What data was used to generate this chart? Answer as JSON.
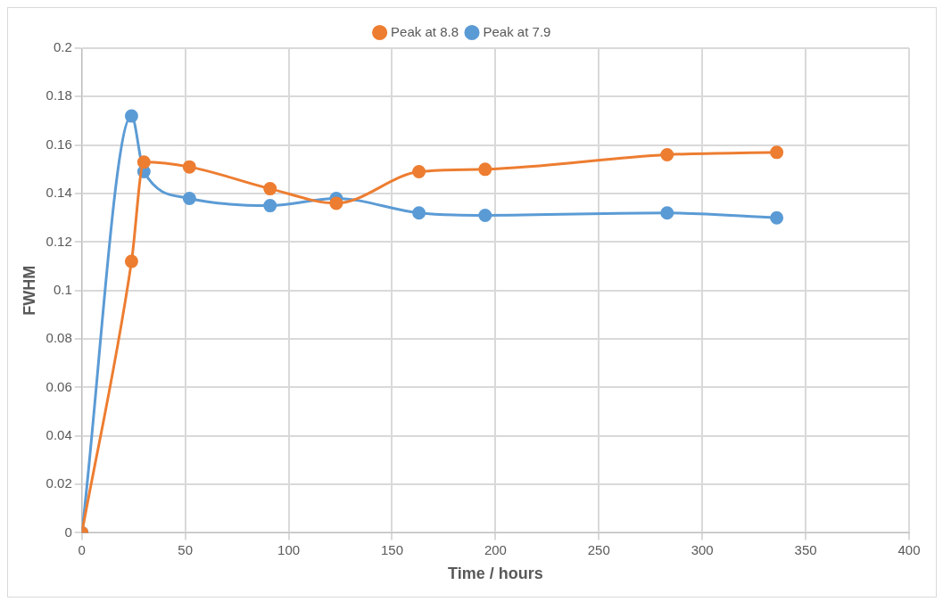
{
  "chart_data": {
    "type": "line",
    "xlabel": "Time / hours",
    "ylabel": "FWHM",
    "xlim": [
      0,
      400
    ],
    "xticks": [
      0,
      50,
      100,
      150,
      200,
      250,
      300,
      350,
      400
    ],
    "ylim": [
      0,
      0.2
    ],
    "yticks": [
      0,
      0.02,
      0.04,
      0.06,
      0.08,
      0.1,
      0.12,
      0.14,
      0.16,
      0.18,
      0.2
    ],
    "grid": true,
    "legend": "top",
    "marker": "circle",
    "line_style": "solid",
    "series": [
      {
        "name": "Peak at 7.9",
        "color": "#5b9bd5",
        "x": [
          0,
          24,
          30,
          52,
          91,
          123,
          163,
          195,
          283,
          336
        ],
        "values": [
          0,
          0.172,
          0.149,
          0.138,
          0.135,
          0.138,
          0.132,
          0.131,
          0.132,
          0.13
        ]
      },
      {
        "name": "Peak at 8.8",
        "color": "#ed7d31",
        "x": [
          0,
          24,
          30,
          52,
          91,
          123,
          163,
          195,
          283,
          336
        ],
        "values": [
          0,
          0.112,
          0.153,
          0.151,
          0.142,
          0.136,
          0.149,
          0.15,
          0.156,
          0.157
        ]
      }
    ]
  }
}
